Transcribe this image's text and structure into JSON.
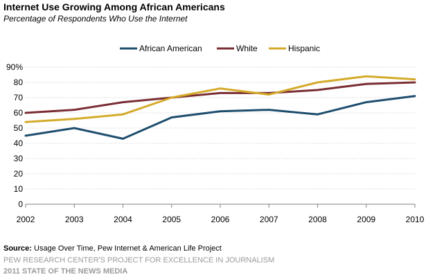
{
  "chart_data": {
    "type": "line",
    "title": "Internet Use Growing Among African Americans",
    "subtitle": "Percentage of Respondents Who Use the Internet",
    "x": [
      "2002",
      "2003",
      "2004",
      "2005",
      "2006",
      "2007",
      "2008",
      "2009",
      "2010"
    ],
    "ylim": [
      0,
      90
    ],
    "yticks": [
      0,
      10,
      20,
      30,
      40,
      50,
      60,
      70,
      80,
      90
    ],
    "ytick_labels": [
      "0",
      "10",
      "20",
      "30",
      "40",
      "50",
      "60",
      "70",
      "80",
      "90%"
    ],
    "grid": true,
    "legend_position": "top",
    "series": [
      {
        "name": "African American",
        "color": "#1e4e6e",
        "values": [
          45,
          50,
          43,
          57,
          61,
          62,
          59,
          67,
          71
        ]
      },
      {
        "name": "White",
        "color": "#7a2e33",
        "values": [
          60,
          62,
          67,
          70,
          73,
          73,
          75,
          79,
          80
        ]
      },
      {
        "name": "Hispanic",
        "color": "#d4aa2a",
        "values": [
          54,
          56,
          59,
          70,
          76,
          72,
          80,
          84,
          82
        ]
      }
    ]
  },
  "source": {
    "label": "Source:",
    "text": " Usage Over Time, Pew Internet & American Life Project"
  },
  "footer": {
    "line1": "PEW RESEARCH CENTER'S PROJECT FOR EXCELLENCE IN JOURNALISM",
    "line2": "2011 STATE OF THE NEWS MEDIA"
  }
}
